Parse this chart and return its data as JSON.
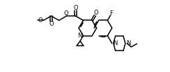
{
  "bg_color": "#ffffff",
  "line_color": "#000000",
  "lw": 1.1,
  "fs": 6.0,
  "figsize": [
    2.44,
    1.04
  ],
  "dpi": 100,
  "xlim": [
    0,
    9.5
  ],
  "ylim": [
    0,
    4.0
  ],
  "s": 0.5
}
